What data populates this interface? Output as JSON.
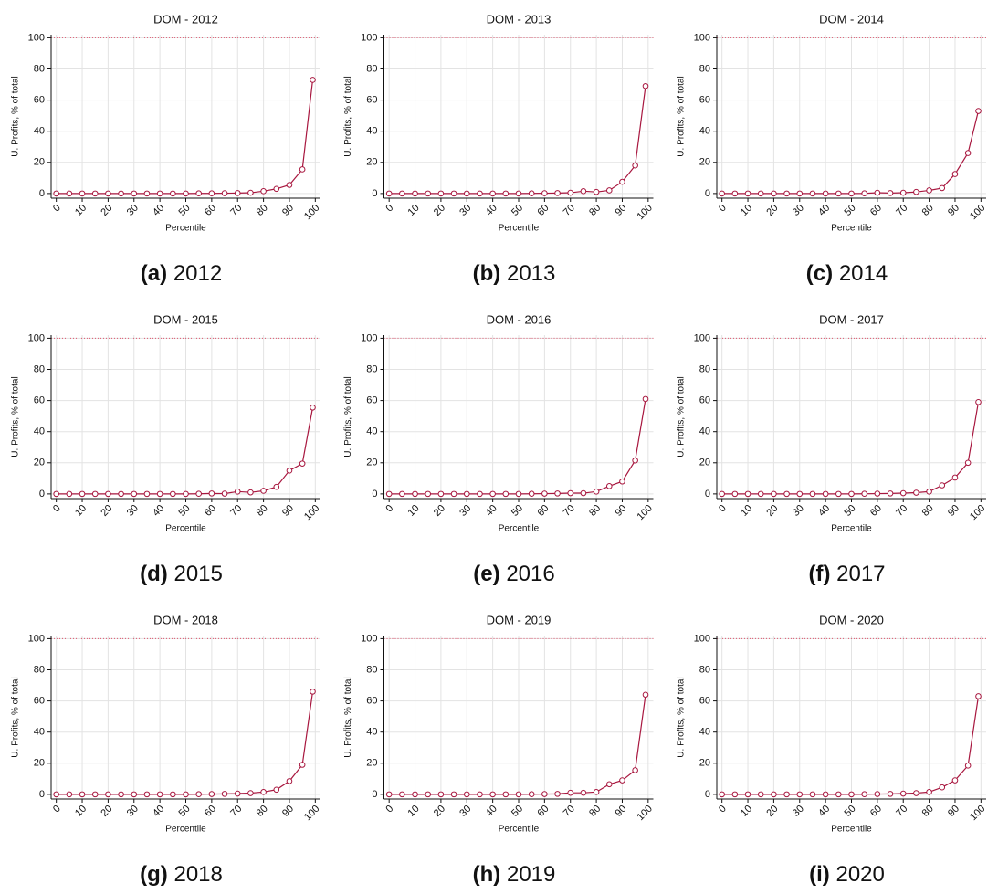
{
  "chart_data": [
    {
      "type": "line",
      "title": "DOM - 2012",
      "caption_letter": "(a)",
      "caption": "2012",
      "xlabel": "Percentile",
      "ylabel": "U. Profits, % of total",
      "x": [
        0,
        5,
        10,
        15,
        20,
        25,
        30,
        35,
        40,
        45,
        50,
        55,
        60,
        65,
        70,
        75,
        80,
        85,
        90,
        95,
        99
      ],
      "series": [
        {
          "color": "#a8173f",
          "values": [
            0,
            0,
            0,
            0,
            0,
            0,
            0,
            0,
            0,
            0,
            0,
            0.1,
            0.1,
            0.2,
            0.3,
            0.5,
            1.5,
            3,
            5.5,
            15.5,
            73
          ]
        }
      ],
      "xlim": [
        -2,
        102
      ],
      "ylim": [
        -3,
        102
      ],
      "xticks": [
        0,
        10,
        20,
        30,
        40,
        50,
        60,
        70,
        80,
        90,
        100
      ],
      "yticks": [
        0,
        20,
        40,
        60,
        80,
        100
      ],
      "reference_line": 100,
      "grid": true
    },
    {
      "type": "line",
      "title": "DOM - 2013",
      "caption_letter": "(b)",
      "caption": "2013",
      "xlabel": "Percentile",
      "ylabel": "U. Profits, % of total",
      "x": [
        0,
        5,
        10,
        15,
        20,
        25,
        30,
        35,
        40,
        45,
        50,
        55,
        60,
        65,
        70,
        75,
        80,
        85,
        90,
        95,
        99
      ],
      "series": [
        {
          "color": "#a8173f",
          "values": [
            0,
            0,
            0,
            0,
            0,
            0,
            0,
            0,
            0,
            0,
            0,
            0.1,
            0.2,
            0.3,
            0.5,
            1.5,
            1,
            2,
            7.5,
            18,
            69
          ]
        }
      ],
      "xlim": [
        -2,
        102
      ],
      "ylim": [
        -3,
        102
      ],
      "xticks": [
        0,
        10,
        20,
        30,
        40,
        50,
        60,
        70,
        80,
        90,
        100
      ],
      "yticks": [
        0,
        20,
        40,
        60,
        80,
        100
      ],
      "reference_line": 100,
      "grid": true
    },
    {
      "type": "line",
      "title": "DOM - 2014",
      "caption_letter": "(c)",
      "caption": "2014",
      "xlabel": "Percentile",
      "ylabel": "U. Profits, % of total",
      "x": [
        0,
        5,
        10,
        15,
        20,
        25,
        30,
        35,
        40,
        45,
        50,
        55,
        60,
        65,
        70,
        75,
        80,
        85,
        90,
        95,
        99
      ],
      "series": [
        {
          "color": "#a8173f",
          "values": [
            0,
            0,
            0,
            0,
            0,
            0,
            0,
            0,
            0,
            0,
            0,
            0.1,
            0.5,
            0.3,
            0.5,
            1,
            2,
            3.5,
            12.5,
            26,
            53
          ]
        }
      ],
      "xlim": [
        -2,
        102
      ],
      "ylim": [
        -3,
        102
      ],
      "xticks": [
        0,
        10,
        20,
        30,
        40,
        50,
        60,
        70,
        80,
        90,
        100
      ],
      "yticks": [
        0,
        20,
        40,
        60,
        80,
        100
      ],
      "reference_line": 100,
      "grid": true
    },
    {
      "type": "line",
      "title": "DOM - 2015",
      "caption_letter": "(d)",
      "caption": "2015",
      "xlabel": "Percentile",
      "ylabel": "U. Profits, % of total",
      "x": [
        0,
        5,
        10,
        15,
        20,
        25,
        30,
        35,
        40,
        45,
        50,
        55,
        60,
        65,
        70,
        75,
        80,
        85,
        90,
        95,
        99
      ],
      "series": [
        {
          "color": "#a8173f",
          "values": [
            0,
            0,
            0,
            0,
            0,
            0,
            0,
            0,
            0,
            0,
            0,
            0.1,
            0.3,
            0.2,
            1.5,
            1,
            2,
            4.5,
            15,
            19.5,
            55.5
          ]
        }
      ],
      "xlim": [
        -2,
        102
      ],
      "ylim": [
        -3,
        102
      ],
      "xticks": [
        0,
        10,
        20,
        30,
        40,
        50,
        60,
        70,
        80,
        90,
        100
      ],
      "yticks": [
        0,
        20,
        40,
        60,
        80,
        100
      ],
      "reference_line": 100,
      "grid": true
    },
    {
      "type": "line",
      "title": "DOM - 2016",
      "caption_letter": "(e)",
      "caption": "2016",
      "xlabel": "Percentile",
      "ylabel": "U. Profits, % of total",
      "x": [
        0,
        5,
        10,
        15,
        20,
        25,
        30,
        35,
        40,
        45,
        50,
        55,
        60,
        65,
        70,
        75,
        80,
        85,
        90,
        95,
        99
      ],
      "series": [
        {
          "color": "#a8173f",
          "values": [
            0,
            0,
            0,
            0,
            0,
            0,
            0,
            0,
            0,
            0,
            0,
            0.1,
            0.2,
            0.3,
            0.5,
            0.5,
            1.5,
            5,
            8,
            21.5,
            61
          ]
        }
      ],
      "xlim": [
        -2,
        102
      ],
      "ylim": [
        -3,
        102
      ],
      "xticks": [
        0,
        10,
        20,
        30,
        40,
        50,
        60,
        70,
        80,
        90,
        100
      ],
      "yticks": [
        0,
        20,
        40,
        60,
        80,
        100
      ],
      "reference_line": 100,
      "grid": true
    },
    {
      "type": "line",
      "title": "DOM - 2017",
      "caption_letter": "(f)",
      "caption": "2017",
      "xlabel": "Percentile",
      "ylabel": "U. Profits, % of total",
      "x": [
        0,
        5,
        10,
        15,
        20,
        25,
        30,
        35,
        40,
        45,
        50,
        55,
        60,
        65,
        70,
        75,
        80,
        85,
        90,
        95,
        99
      ],
      "series": [
        {
          "color": "#a8173f",
          "values": [
            0,
            0,
            0,
            0,
            0,
            0,
            0,
            0,
            0,
            0,
            0,
            0.1,
            0.2,
            0.3,
            0.5,
            0.8,
            1.5,
            5.5,
            10.5,
            20,
            59
          ]
        }
      ],
      "xlim": [
        -2,
        102
      ],
      "ylim": [
        -3,
        102
      ],
      "xticks": [
        0,
        10,
        20,
        30,
        40,
        50,
        60,
        70,
        80,
        90,
        100
      ],
      "yticks": [
        0,
        20,
        40,
        60,
        80,
        100
      ],
      "reference_line": 100,
      "grid": true
    },
    {
      "type": "line",
      "title": "DOM - 2018",
      "caption_letter": "(g)",
      "caption": "2018",
      "xlabel": "Percentile",
      "ylabel": "U. Profits, % of total",
      "x": [
        0,
        5,
        10,
        15,
        20,
        25,
        30,
        35,
        40,
        45,
        50,
        55,
        60,
        65,
        70,
        75,
        80,
        85,
        90,
        95,
        99
      ],
      "series": [
        {
          "color": "#a8173f",
          "values": [
            0,
            0,
            0,
            0,
            0,
            0,
            0,
            0,
            0,
            0,
            0,
            0.1,
            0.2,
            0.3,
            0.5,
            0.8,
            1.5,
            3,
            8.5,
            19,
            66
          ]
        }
      ],
      "xlim": [
        -2,
        102
      ],
      "ylim": [
        -3,
        102
      ],
      "xticks": [
        0,
        10,
        20,
        30,
        40,
        50,
        60,
        70,
        80,
        90,
        100
      ],
      "yticks": [
        0,
        20,
        40,
        60,
        80,
        100
      ],
      "reference_line": 100,
      "grid": true
    },
    {
      "type": "line",
      "title": "DOM - 2019",
      "caption_letter": "(h)",
      "caption": "2019",
      "xlabel": "Percentile",
      "ylabel": "U. Profits, % of total",
      "x": [
        0,
        5,
        10,
        15,
        20,
        25,
        30,
        35,
        40,
        45,
        50,
        55,
        60,
        65,
        70,
        75,
        80,
        85,
        90,
        95,
        99
      ],
      "series": [
        {
          "color": "#a8173f",
          "values": [
            0,
            0,
            0,
            0,
            0,
            0,
            0,
            0,
            0,
            0,
            0,
            0.1,
            0.2,
            0.3,
            1,
            1,
            1.5,
            6.5,
            9,
            15.5,
            64
          ]
        }
      ],
      "xlim": [
        -2,
        102
      ],
      "ylim": [
        -3,
        102
      ],
      "xticks": [
        0,
        10,
        20,
        30,
        40,
        50,
        60,
        70,
        80,
        90,
        100
      ],
      "yticks": [
        0,
        20,
        40,
        60,
        80,
        100
      ],
      "reference_line": 100,
      "grid": true
    },
    {
      "type": "line",
      "title": "DOM - 2020",
      "caption_letter": "(i)",
      "caption": "2020",
      "xlabel": "Percentile",
      "ylabel": "U. Profits, % of total",
      "x": [
        0,
        5,
        10,
        15,
        20,
        25,
        30,
        35,
        40,
        45,
        50,
        55,
        60,
        65,
        70,
        75,
        80,
        85,
        90,
        95,
        99
      ],
      "series": [
        {
          "color": "#a8173f",
          "values": [
            0,
            0,
            0,
            0,
            0,
            0,
            0,
            0,
            0,
            0,
            0,
            0.1,
            0.2,
            0.3,
            0.5,
            0.8,
            1.5,
            4.5,
            9,
            18.5,
            63
          ]
        }
      ],
      "xlim": [
        -2,
        102
      ],
      "ylim": [
        -3,
        102
      ],
      "xticks": [
        0,
        10,
        20,
        30,
        40,
        50,
        60,
        70,
        80,
        90,
        100
      ],
      "yticks": [
        0,
        20,
        40,
        60,
        80,
        100
      ],
      "reference_line": 100,
      "grid": true
    }
  ]
}
